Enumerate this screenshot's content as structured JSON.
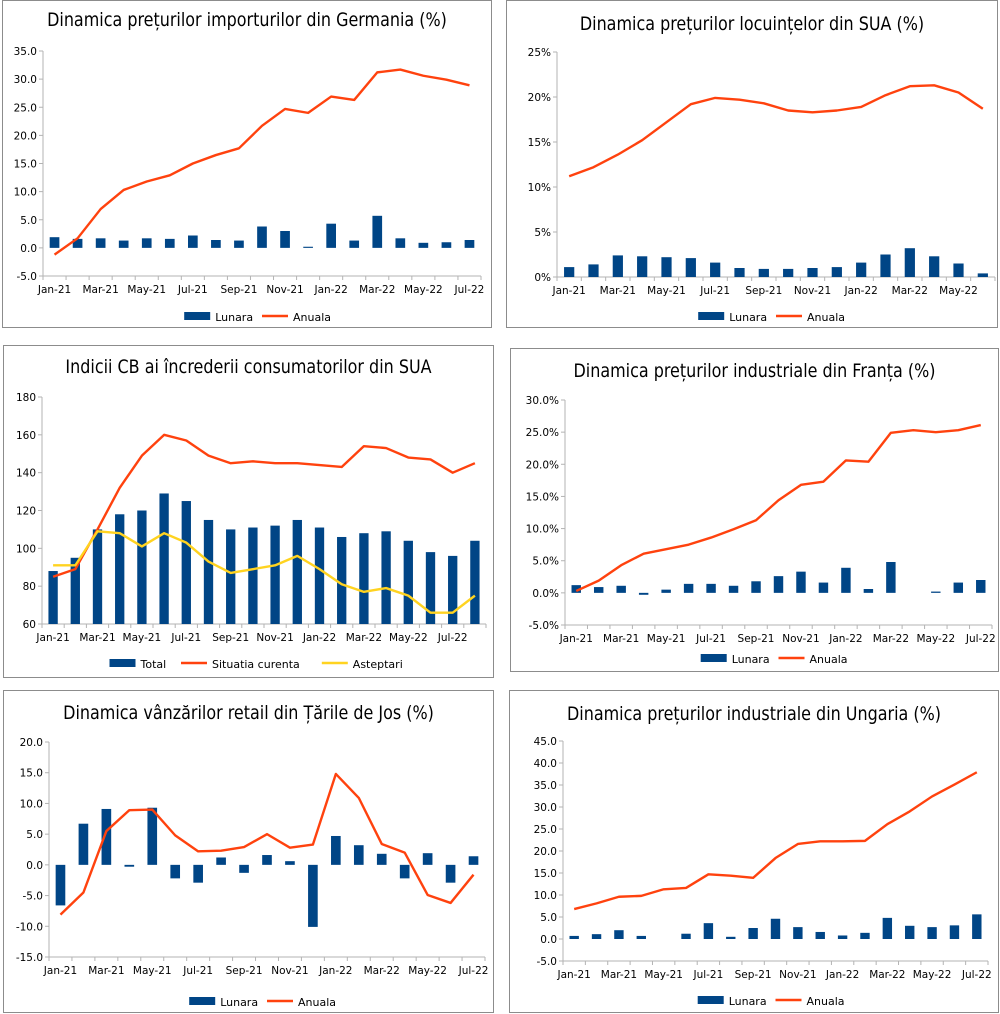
{
  "colors": {
    "bar": "#004586",
    "line": "#ff420e",
    "line2": "#ffd320",
    "grid": "#b3b3b3"
  },
  "chart_data": [
    {
      "id": "de",
      "type": "bar+line",
      "title": "Dinamica prețurilor importurilor din Germania (%)",
      "categories": [
        "Jan-21",
        "Feb-21",
        "Mar-21",
        "Apr-21",
        "May-21",
        "Jun-21",
        "Jul-21",
        "Aug-21",
        "Sep-21",
        "Oct-21",
        "Nov-21",
        "Dec-21",
        "Jan-22",
        "Feb-22",
        "Mar-22",
        "Apr-22",
        "May-22",
        "Jun-22",
        "Jul-22"
      ],
      "x_tick_labels": [
        "Jan-21",
        "Mar-21",
        "May-21",
        "Jul-21",
        "Sep-21",
        "Nov-21",
        "Jan-22",
        "Mar-22",
        "May-22",
        "Jul-22"
      ],
      "y_ticks": [
        "-5.0",
        "0.0",
        "5.0",
        "10.0",
        "15.0",
        "20.0",
        "25.0",
        "30.0",
        "35.0"
      ],
      "ylim": [
        -5,
        35
      ],
      "series": [
        {
          "name": "Lunara",
          "kind": "bar",
          "values": [
            1.9,
            1.6,
            1.7,
            1.3,
            1.7,
            1.6,
            2.2,
            1.4,
            1.3,
            3.8,
            3.0,
            0.2,
            4.3,
            1.3,
            5.7,
            1.7,
            0.9,
            1.0,
            1.4
          ]
        },
        {
          "name": "Anuala",
          "kind": "line",
          "values": [
            -1.2,
            1.7,
            6.9,
            10.3,
            11.8,
            12.9,
            15.0,
            16.5,
            17.7,
            21.7,
            24.7,
            24.0,
            26.9,
            26.3,
            31.2,
            31.7,
            30.6,
            29.9,
            28.9
          ]
        }
      ]
    },
    {
      "id": "us-housing",
      "type": "bar+line",
      "title": "Dinamica prețurilor locuințelor din SUA (%)",
      "categories": [
        "Jan-21",
        "Feb-21",
        "Mar-21",
        "Apr-21",
        "May-21",
        "Jun-21",
        "Jul-21",
        "Aug-21",
        "Sep-21",
        "Oct-21",
        "Nov-21",
        "Dec-21",
        "Jan-22",
        "Feb-22",
        "Mar-22",
        "Apr-22",
        "May-22",
        "Jun-22"
      ],
      "x_tick_labels": [
        "Jan-21",
        "Mar-21",
        "May-21",
        "Jul-21",
        "Sep-21",
        "Nov-21",
        "Jan-22",
        "Mar-22",
        "May-22"
      ],
      "y_ticks": [
        "0%",
        "5%",
        "10%",
        "15%",
        "20%",
        "25%"
      ],
      "ylim": [
        0,
        25
      ],
      "series": [
        {
          "name": "Lunara",
          "kind": "bar",
          "values": [
            1.1,
            1.4,
            2.4,
            2.3,
            2.2,
            2.1,
            1.6,
            1.0,
            0.9,
            0.9,
            1.0,
            1.1,
            1.6,
            2.5,
            3.2,
            2.3,
            1.5,
            0.4
          ]
        },
        {
          "name": "Anuala",
          "kind": "line",
          "values": [
            11.2,
            12.2,
            13.6,
            15.2,
            17.2,
            19.2,
            19.9,
            19.7,
            19.3,
            18.5,
            18.3,
            18.5,
            18.9,
            20.2,
            21.2,
            21.3,
            20.5,
            18.7
          ]
        }
      ]
    },
    {
      "id": "us-confidence",
      "type": "bar+line",
      "title": "Indicii CB ai încrederii consumatorilor din SUA",
      "categories": [
        "Jan-21",
        "Feb-21",
        "Mar-21",
        "Apr-21",
        "May-21",
        "Jun-21",
        "Jul-21",
        "Aug-21",
        "Sep-21",
        "Oct-21",
        "Nov-21",
        "Dec-21",
        "Jan-22",
        "Feb-22",
        "Mar-22",
        "Apr-22",
        "May-22",
        "Jun-22",
        "Jul-22",
        "Aug-22"
      ],
      "x_tick_labels": [
        "Jan-21",
        "Mar-21",
        "May-21",
        "Jul-21",
        "Sep-21",
        "Nov-21",
        "Jan-22",
        "Mar-22",
        "May-22",
        "Jul-22"
      ],
      "y_ticks": [
        "60",
        "80",
        "100",
        "120",
        "140",
        "160",
        "180"
      ],
      "ylim": [
        60,
        180
      ],
      "series": [
        {
          "name": "Total",
          "kind": "bar",
          "values": [
            88,
            95,
            110,
            118,
            120,
            129,
            125,
            115,
            110,
            111,
            112,
            115,
            111,
            106,
            108,
            109,
            104,
            98,
            96,
            104
          ]
        },
        {
          "name": "Situatia curenta",
          "kind": "line",
          "values": [
            85,
            89,
            110,
            132,
            149,
            160,
            157,
            149,
            145,
            146,
            145,
            145,
            144,
            143,
            154,
            153,
            148,
            147,
            140,
            145
          ]
        },
        {
          "name": "Asteptari",
          "kind": "line",
          "values": [
            91,
            91,
            109,
            108,
            101,
            108,
            103,
            93,
            87,
            89,
            91,
            96,
            89,
            81,
            77,
            79,
            75,
            66,
            66,
            75
          ]
        }
      ]
    },
    {
      "id": "fr",
      "type": "bar+line",
      "title": "Dinamica prețurilor industriale din Franța (%)",
      "categories": [
        "Jan-21",
        "Feb-21",
        "Mar-21",
        "Apr-21",
        "May-21",
        "Jun-21",
        "Jul-21",
        "Aug-21",
        "Sep-21",
        "Oct-21",
        "Nov-21",
        "Dec-21",
        "Jan-22",
        "Feb-22",
        "Mar-22",
        "Apr-22",
        "May-22",
        "Jun-22",
        "Jul-22"
      ],
      "x_tick_labels": [
        "Jan-21",
        "Mar-21",
        "May-21",
        "Jul-21",
        "Sep-21",
        "Nov-21",
        "Jan-22",
        "Mar-22",
        "May-22",
        "Jul-22"
      ],
      "y_ticks": [
        "-5.0%",
        "0.0%",
        "5.0%",
        "10.0%",
        "15.0%",
        "20.0%",
        "25.0%",
        "30.0%"
      ],
      "ylim": [
        -5,
        30
      ],
      "series": [
        {
          "name": "Lunara",
          "kind": "bar",
          "values": [
            1.2,
            0.9,
            1.1,
            -0.3,
            0.5,
            1.4,
            1.4,
            1.1,
            1.8,
            2.6,
            3.3,
            1.6,
            3.9,
            0.6,
            4.8,
            0.0,
            0.2,
            1.6,
            2.0
          ]
        },
        {
          "name": "Anuala",
          "kind": "line",
          "values": [
            0.3,
            1.9,
            4.3,
            6.1,
            6.8,
            7.5,
            8.6,
            9.9,
            11.3,
            14.4,
            16.8,
            17.3,
            20.6,
            20.4,
            24.9,
            25.3,
            25.0,
            25.3,
            26.1
          ]
        }
      ]
    },
    {
      "id": "nl",
      "type": "bar+line",
      "title": "Dinamica vânzărilor retail din Țările de Jos (%)",
      "categories": [
        "Jan-21",
        "Feb-21",
        "Mar-21",
        "Apr-21",
        "May-21",
        "Jun-21",
        "Jul-21",
        "Aug-21",
        "Sep-21",
        "Oct-21",
        "Nov-21",
        "Dec-21",
        "Jan-22",
        "Feb-22",
        "Mar-22",
        "Apr-22",
        "May-22",
        "Jun-22",
        "Jul-22"
      ],
      "x_tick_labels": [
        "Jan-21",
        "Mar-21",
        "May-21",
        "Jul-21",
        "Sep-21",
        "Nov-21",
        "Jan-22",
        "Mar-22",
        "May-22",
        "Jul-22"
      ],
      "y_ticks": [
        "-15.0",
        "-10.0",
        "-5.0",
        "0.0",
        "5.0",
        "10.0",
        "15.0",
        "20.0"
      ],
      "ylim": [
        -15,
        20
      ],
      "series": [
        {
          "name": "Lunara",
          "kind": "bar",
          "values": [
            -6.6,
            6.7,
            9.1,
            -0.3,
            9.3,
            -2.2,
            -2.9,
            1.2,
            -1.3,
            1.6,
            0.6,
            -10.1,
            4.7,
            3.2,
            1.8,
            -2.2,
            1.9,
            -2.9,
            1.4
          ]
        },
        {
          "name": "Anuala",
          "kind": "line",
          "values": [
            -8.1,
            -4.5,
            5.5,
            8.9,
            9.0,
            4.8,
            2.2,
            2.3,
            2.9,
            5.0,
            2.8,
            3.3,
            14.8,
            10.9,
            3.4,
            2.0,
            -4.9,
            -6.2,
            -1.6
          ]
        }
      ]
    },
    {
      "id": "hu",
      "type": "bar+line",
      "title": "Dinamica prețurilor industriale din Ungaria (%)",
      "categories": [
        "Jan-21",
        "Feb-21",
        "Mar-21",
        "Apr-21",
        "May-21",
        "Jun-21",
        "Jul-21",
        "Aug-21",
        "Sep-21",
        "Oct-21",
        "Nov-21",
        "Dec-21",
        "Jan-22",
        "Feb-22",
        "Mar-22",
        "Apr-22",
        "May-22",
        "Jun-22",
        "Jul-22"
      ],
      "x_tick_labels": [
        "Jan-21",
        "Mar-21",
        "May-21",
        "Jul-21",
        "Sep-21",
        "Nov-21",
        "Jan-22",
        "Mar-22",
        "May-22",
        "Jul-22"
      ],
      "y_ticks": [
        "-5.0",
        "0.0",
        "5.0",
        "10.0",
        "15.0",
        "20.0",
        "25.0",
        "30.0",
        "35.0",
        "40.0",
        "45.0"
      ],
      "ylim": [
        -5,
        45
      ],
      "series": [
        {
          "name": "Lunara",
          "kind": "bar",
          "values": [
            0.7,
            1.1,
            2.0,
            0.7,
            0.0,
            1.2,
            3.6,
            0.5,
            2.5,
            4.6,
            2.7,
            1.6,
            0.8,
            1.4,
            4.8,
            3.0,
            2.7,
            3.1,
            5.6
          ]
        },
        {
          "name": "Anuala",
          "kind": "line",
          "values": [
            6.8,
            8.1,
            9.6,
            9.8,
            11.3,
            11.6,
            14.7,
            14.4,
            13.9,
            18.4,
            21.6,
            22.2,
            22.2,
            22.3,
            26.1,
            29.0,
            32.4,
            35.1,
            37.9
          ]
        }
      ]
    }
  ]
}
